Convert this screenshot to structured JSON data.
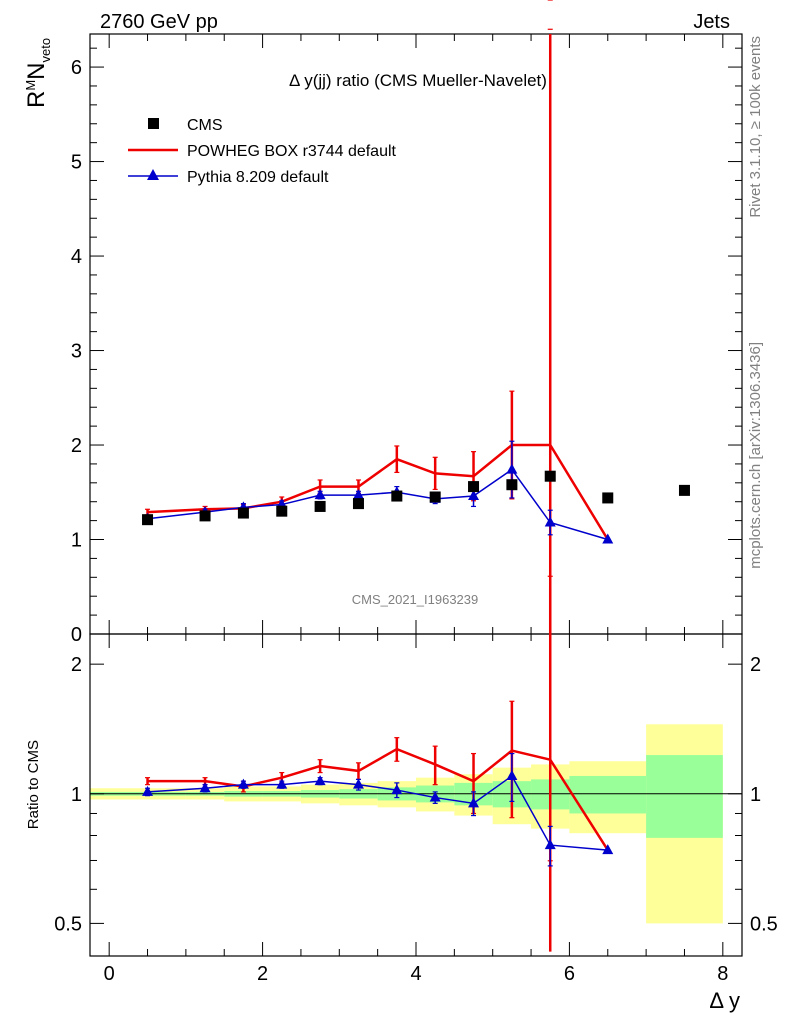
{
  "header": {
    "left": "2760 GeV pp",
    "right": "Jets"
  },
  "side_text": {
    "top": "Rivet 3.1.10, ≥ 100k events",
    "bottom": "mcplots.cern.ch [arXiv:1306.3436]"
  },
  "watermark": "CMS_2021_I1963239",
  "colors": {
    "cms": "#000000",
    "powheg": "#ee0000",
    "pythia": "#0000cc",
    "band_inner": "#99ff99",
    "band_outer": "#ffff99"
  },
  "chart_data": [
    {
      "type": "line",
      "title": "Δ y(jj) ratio (CMS Mueller-Navelet)",
      "ylabel": "R^M N_veto",
      "xlim": [
        -0.25,
        8.25
      ],
      "ylim": [
        0,
        6.35
      ],
      "yticks": [
        "0",
        "1",
        "2",
        "3",
        "4",
        "5",
        "6"
      ],
      "legend_position": "top-left",
      "legend": [
        "CMS",
        "POWHEG BOX r3744 default",
        "Pythia 8.209 default"
      ],
      "series": [
        {
          "name": "CMS",
          "x": [
            0.5,
            1.25,
            1.75,
            2.25,
            2.75,
            3.25,
            3.75,
            4.25,
            4.75,
            5.25,
            5.75,
            6.5,
            7.5
          ],
          "y": [
            1.21,
            1.25,
            1.28,
            1.3,
            1.35,
            1.38,
            1.46,
            1.45,
            1.56,
            1.58,
            1.67,
            1.44,
            1.52
          ]
        },
        {
          "name": "POWHEG BOX r3744 default",
          "x": [
            0.5,
            1.25,
            1.75,
            2.25,
            2.75,
            3.25,
            3.75,
            4.25,
            4.75,
            5.25,
            5.75,
            6.5
          ],
          "y": [
            1.29,
            1.32,
            1.33,
            1.4,
            1.56,
            1.56,
            1.85,
            1.7,
            1.67,
            2.0,
            2.0,
            1.0
          ],
          "err": [
            0.03,
            0.03,
            0.04,
            0.05,
            0.07,
            0.07,
            0.14,
            0.17,
            0.26,
            0.57,
            4.4,
            0
          ]
        },
        {
          "name": "Pythia 8.209 default",
          "x": [
            0.5,
            1.25,
            1.75,
            2.25,
            2.75,
            3.25,
            3.75,
            4.25,
            4.75,
            5.25,
            5.75,
            6.5
          ],
          "y": [
            1.22,
            1.29,
            1.34,
            1.37,
            1.47,
            1.47,
            1.5,
            1.43,
            1.46,
            1.74,
            1.18,
            1.0
          ],
          "err": [
            0.03,
            0.03,
            0.04,
            0.04,
            0.04,
            0.04,
            0.06,
            0.05,
            0.11,
            0.3,
            0.13,
            0
          ]
        }
      ]
    },
    {
      "type": "line",
      "ylabel": "Ratio to CMS",
      "xlabel": "Δ y",
      "xlim": [
        -0.25,
        8.25
      ],
      "ylim": [
        0.42,
        2.35
      ],
      "log_y": true,
      "xticks": [
        "0",
        "2",
        "4",
        "6",
        "8"
      ],
      "yticks": [
        "0.5",
        "1",
        "2"
      ],
      "bands": {
        "edges": [
          -0.25,
          1.0,
          1.5,
          2.0,
          2.5,
          3.0,
          3.5,
          4.0,
          4.5,
          5.0,
          5.5,
          6.0,
          7.0,
          8.0
        ],
        "inner": [
          [
            0.99,
            1.01
          ],
          [
            0.99,
            1.01
          ],
          [
            0.985,
            1.015
          ],
          [
            0.985,
            1.015
          ],
          [
            0.98,
            1.02
          ],
          [
            0.975,
            1.025
          ],
          [
            0.965,
            1.035
          ],
          [
            0.955,
            1.045
          ],
          [
            0.94,
            1.06
          ],
          [
            0.93,
            1.07
          ],
          [
            0.92,
            1.08
          ],
          [
            0.9,
            1.1
          ],
          [
            0.79,
            1.23
          ]
        ],
        "outer": [
          [
            0.97,
            1.03
          ],
          [
            0.97,
            1.03
          ],
          [
            0.96,
            1.04
          ],
          [
            0.96,
            1.04
          ],
          [
            0.95,
            1.05
          ],
          [
            0.94,
            1.06
          ],
          [
            0.93,
            1.07
          ],
          [
            0.91,
            1.09
          ],
          [
            0.89,
            1.11
          ],
          [
            0.85,
            1.15
          ],
          [
            0.83,
            1.17
          ],
          [
            0.81,
            1.19
          ],
          [
            0.5,
            1.45
          ]
        ]
      },
      "series": [
        {
          "name": "POWHEG BOX r3744 default",
          "x": [
            0.5,
            1.25,
            1.75,
            2.25,
            2.75,
            3.25,
            3.75,
            4.25,
            4.75,
            5.25,
            5.75,
            6.5
          ],
          "y": [
            1.07,
            1.07,
            1.04,
            1.09,
            1.16,
            1.13,
            1.27,
            1.17,
            1.07,
            1.26,
            1.2,
            0.74
          ],
          "err": [
            0.02,
            0.02,
            0.03,
            0.03,
            0.04,
            0.05,
            0.08,
            0.12,
            0.17,
            0.38,
            2.0,
            0
          ]
        },
        {
          "name": "Pythia 8.209 default",
          "x": [
            0.5,
            1.25,
            1.75,
            2.25,
            2.75,
            3.25,
            3.75,
            4.25,
            4.75,
            5.25,
            5.75,
            6.5
          ],
          "y": [
            1.01,
            1.03,
            1.05,
            1.05,
            1.07,
            1.05,
            1.02,
            0.98,
            0.95,
            1.1,
            0.76,
            0.74
          ],
          "err": [
            0.02,
            0.02,
            0.02,
            0.02,
            0.02,
            0.03,
            0.04,
            0.03,
            0.06,
            0.14,
            0.08,
            0
          ]
        }
      ]
    }
  ]
}
